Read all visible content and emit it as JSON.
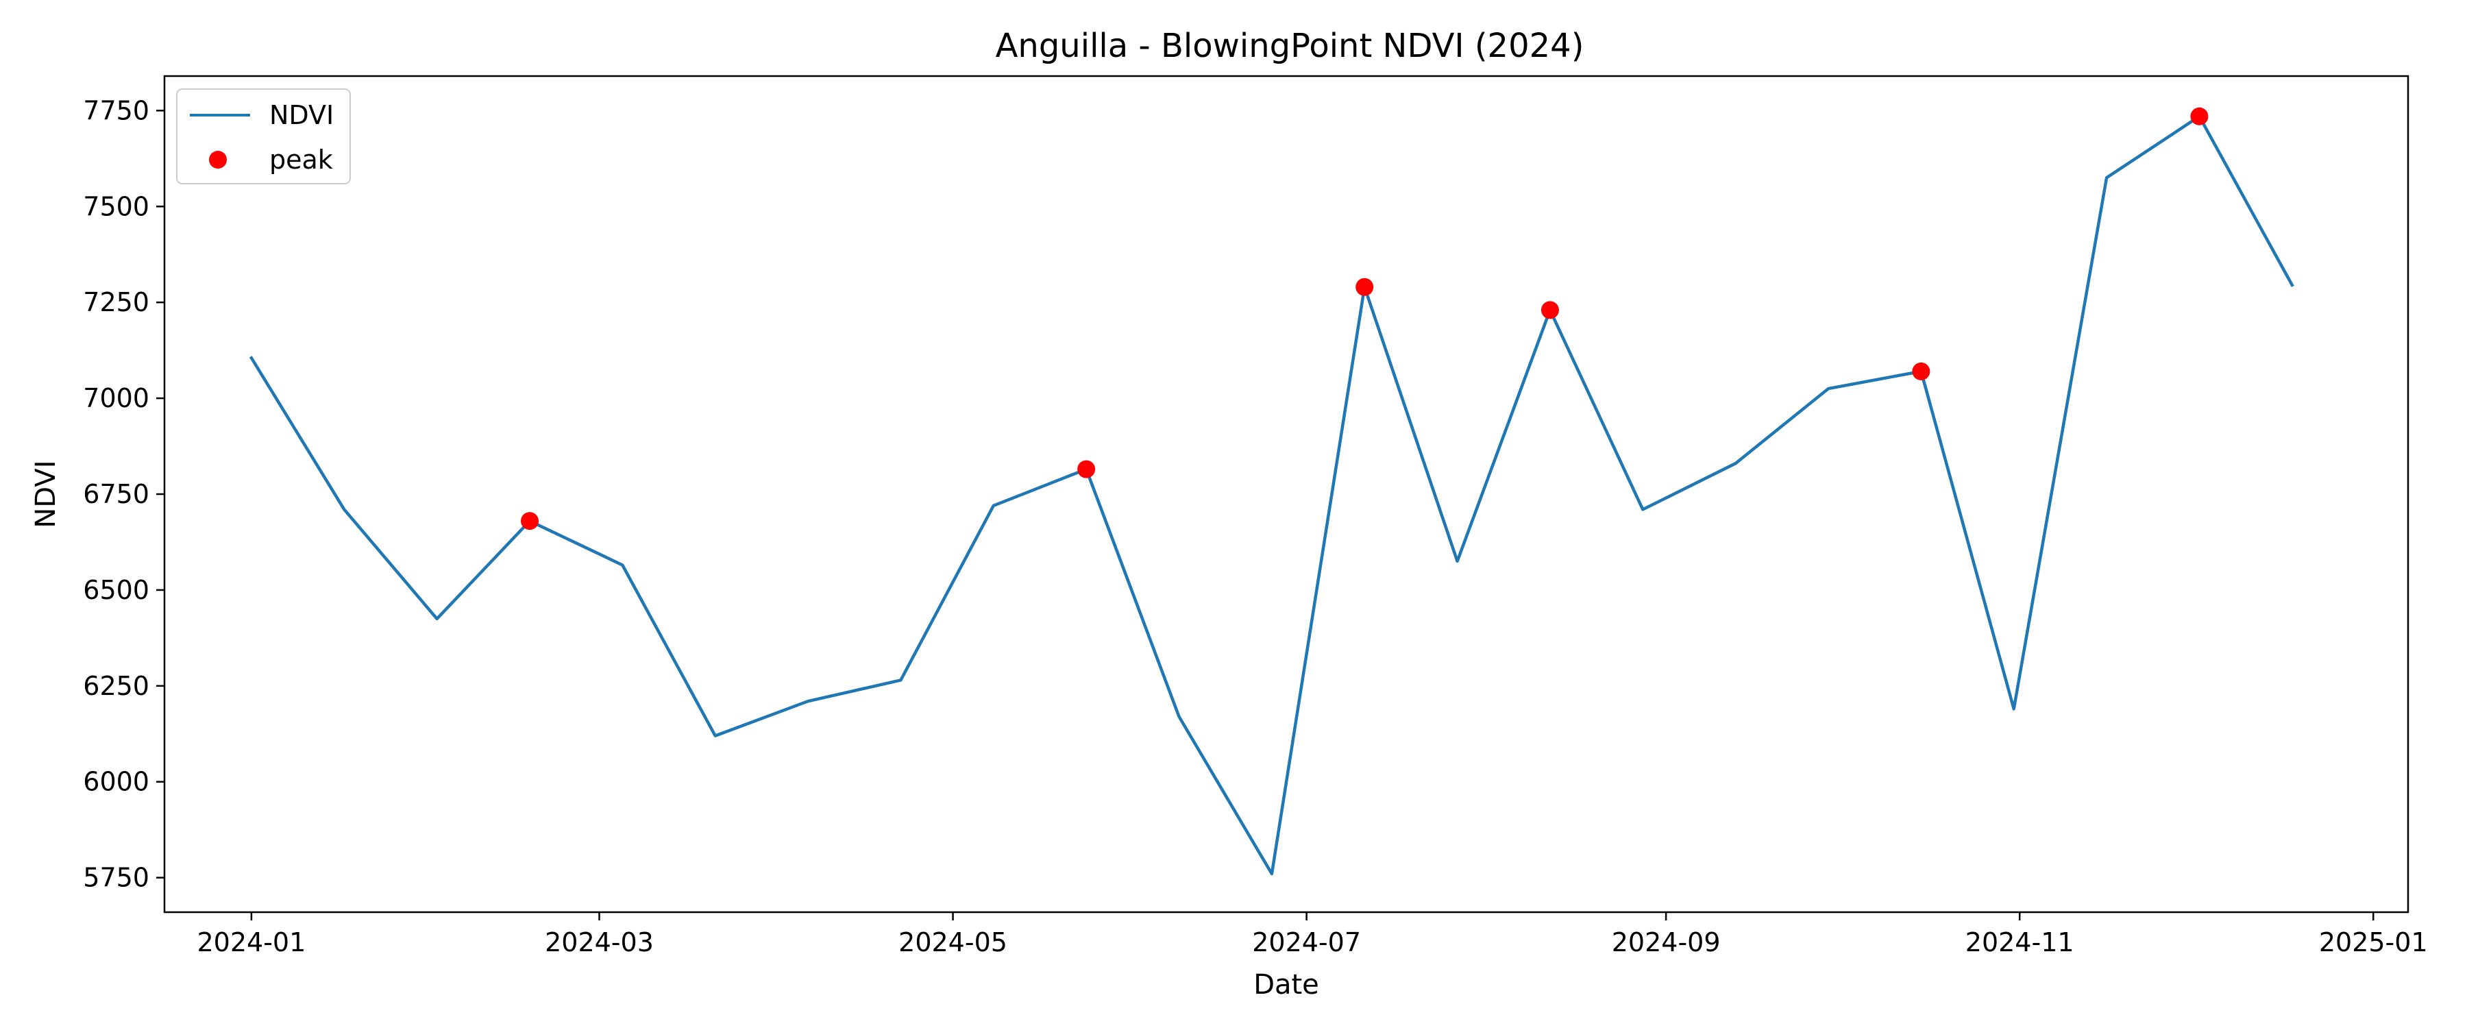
{
  "chart_data": {
    "type": "line",
    "title": "Anguilla - BlowingPoint NDVI (2024)",
    "xlabel": "Date",
    "ylabel": "NDVI",
    "xlim": [
      "2023-12-17",
      "2025-01-07"
    ],
    "ylim": [
      5660,
      7840
    ],
    "xticks": [
      "2024-01",
      "2024-03",
      "2024-05",
      "2024-07",
      "2024-09",
      "2024-11",
      "2025-01"
    ],
    "yticks": [
      5750,
      6000,
      6250,
      6500,
      6750,
      7000,
      7250,
      7500,
      7750
    ],
    "series": [
      {
        "name": "NDVI",
        "color": "#1f77b4",
        "points": [
          {
            "date": "2024-01-01",
            "value": 7105
          },
          {
            "date": "2024-01-17",
            "value": 6710
          },
          {
            "date": "2024-02-02",
            "value": 6425
          },
          {
            "date": "2024-02-18",
            "value": 6680
          },
          {
            "date": "2024-03-05",
            "value": 6565
          },
          {
            "date": "2024-03-21",
            "value": 6120
          },
          {
            "date": "2024-04-06",
            "value": 6210
          },
          {
            "date": "2024-04-22",
            "value": 6265
          },
          {
            "date": "2024-05-08",
            "value": 6720
          },
          {
            "date": "2024-05-24",
            "value": 6815
          },
          {
            "date": "2024-06-09",
            "value": 6170
          },
          {
            "date": "2024-06-25",
            "value": 5760
          },
          {
            "date": "2024-07-11",
            "value": 7290
          },
          {
            "date": "2024-07-27",
            "value": 6575
          },
          {
            "date": "2024-08-12",
            "value": 7230
          },
          {
            "date": "2024-08-28",
            "value": 6710
          },
          {
            "date": "2024-09-13",
            "value": 6830
          },
          {
            "date": "2024-09-29",
            "value": 7025
          },
          {
            "date": "2024-10-15",
            "value": 7070
          },
          {
            "date": "2024-10-31",
            "value": 6190
          },
          {
            "date": "2024-11-16",
            "value": 7575
          },
          {
            "date": "2024-12-02",
            "value": 7735
          },
          {
            "date": "2024-12-18",
            "value": 7295
          }
        ]
      },
      {
        "name": "peak",
        "color": "#ff0000",
        "points": [
          {
            "date": "2024-02-18",
            "value": 6680
          },
          {
            "date": "2024-05-24",
            "value": 6815
          },
          {
            "date": "2024-07-11",
            "value": 7290
          },
          {
            "date": "2024-08-12",
            "value": 7230
          },
          {
            "date": "2024-10-15",
            "value": 7070
          },
          {
            "date": "2024-12-02",
            "value": 7735
          }
        ]
      }
    ],
    "legend": {
      "placement": "top-left",
      "entries": [
        {
          "label": "NDVI",
          "marker": "line",
          "color": "#1f77b4"
        },
        {
          "label": "peak",
          "marker": "dot",
          "color": "#ff0000"
        }
      ]
    },
    "grid": false
  }
}
